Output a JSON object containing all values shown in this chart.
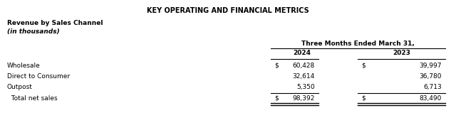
{
  "title": "KEY OPERATING AND FINANCIAL METRICS",
  "subtitle_line1": "Revenue by Sales Channel",
  "subtitle_line2": "(in thousands)",
  "header_group": "Three Months Ended March 31,",
  "col_headers": [
    "2024",
    "2023"
  ],
  "rows": [
    {
      "label": "Wholesale",
      "dollar_2024": true,
      "val_2024": "60,428",
      "dollar_2023": true,
      "val_2023": "39,997",
      "shaded": true
    },
    {
      "label": "Direct to Consumer",
      "dollar_2024": false,
      "val_2024": "32,614",
      "dollar_2023": false,
      "val_2023": "36,780",
      "shaded": false
    },
    {
      "label": "Outpost",
      "dollar_2024": false,
      "val_2024": "5,350",
      "dollar_2023": false,
      "val_2023": "6,713",
      "shaded": true
    }
  ],
  "total_row": {
    "label": "  Total net sales",
    "dollar_2024": true,
    "val_2024": "98,392",
    "dollar_2023": true,
    "val_2023": "83,490"
  },
  "shade_color": "#dce9f5",
  "bg_color": "#ffffff",
  "text_color": "#000000",
  "figsize": [
    6.4,
    1.66
  ],
  "dpi": 100
}
